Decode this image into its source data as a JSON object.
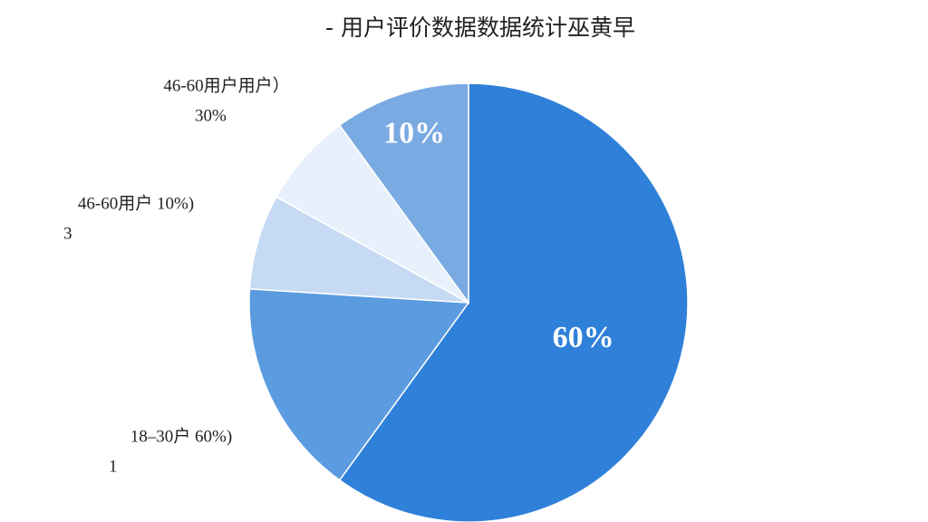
{
  "chart_data": {
    "type": "pie",
    "title": "- 用户评价数据数据统计巫黄早",
    "values": [
      60,
      16,
      7,
      7,
      10
    ],
    "value_labels": [
      "60%",
      null,
      null,
      null,
      "10%"
    ],
    "colors": [
      "#2f80d8",
      "#5b9be0",
      "#c6daf3",
      "#e8f0fb",
      "#7aaae2"
    ],
    "annotations": [
      [
        "18–30户 60%)",
        "1"
      ],
      [
        "46-60用户 10%)",
        "3"
      ],
      [
        "46-60用户用户）",
        "30%"
      ]
    ]
  }
}
